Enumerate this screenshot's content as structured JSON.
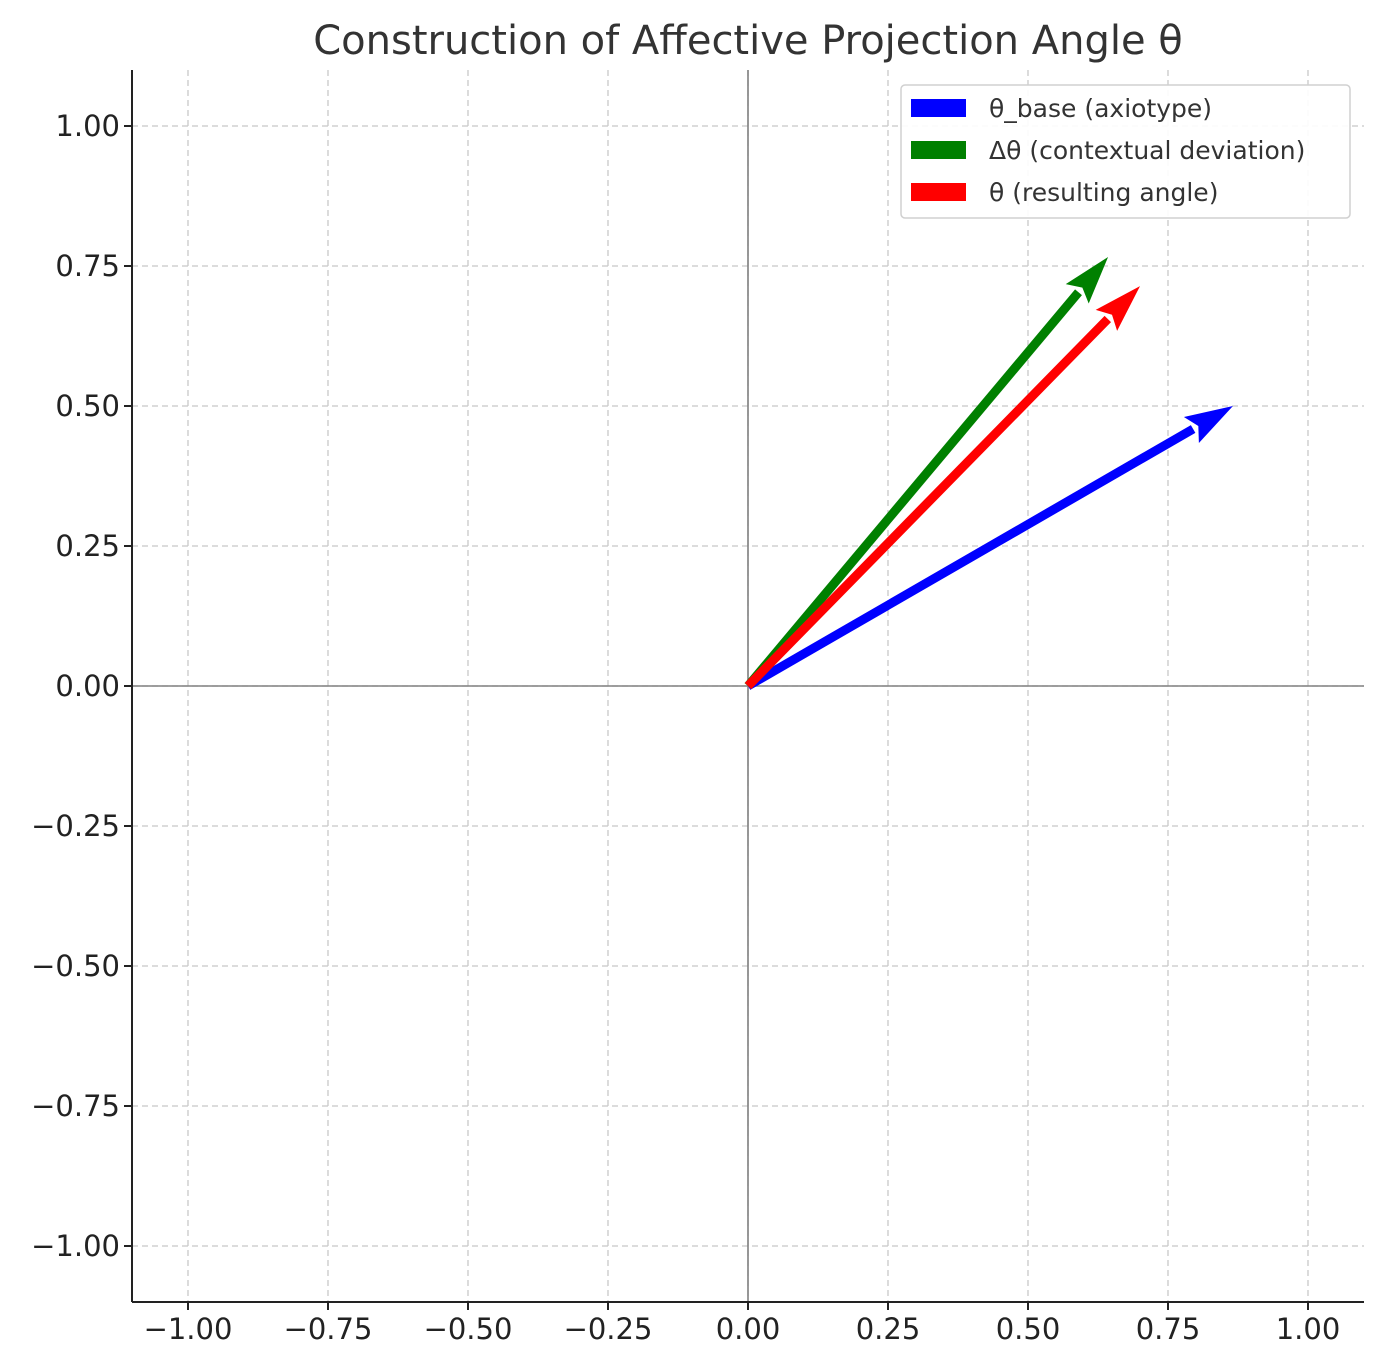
{
  "chart_data": {
    "type": "quiver",
    "title": "Construction of Affective Projection Angle θ",
    "xlabel": "",
    "ylabel": "",
    "xlim": [
      -1.1,
      1.1
    ],
    "ylim": [
      -1.1,
      1.1
    ],
    "x_ticks": [
      -1.0,
      -0.75,
      -0.5,
      -0.25,
      0.0,
      0.25,
      0.5,
      0.75,
      1.0
    ],
    "y_ticks": [
      -1.0,
      -0.75,
      -0.5,
      -0.25,
      0.0,
      0.25,
      0.5,
      0.75,
      1.0
    ],
    "x_tick_labels": [
      "−1.00",
      "−0.75",
      "−0.50",
      "−0.25",
      "0.00",
      "0.25",
      "0.50",
      "0.75",
      "1.00"
    ],
    "y_tick_labels": [
      "−1.00",
      "−0.75",
      "−0.50",
      "−0.25",
      "0.00",
      "0.25",
      "0.50",
      "0.75",
      "1.00"
    ],
    "grid": true,
    "legend_position": "top-right",
    "series": [
      {
        "name": "θ_base (axiotype)",
        "color": "#0000ff",
        "origin": [
          0,
          0
        ],
        "vector": [
          0.866,
          0.5
        ]
      },
      {
        "name": "Δθ (contextual deviation)",
        "color": "#008000",
        "origin": [
          0,
          0
        ],
        "vector": [
          0.643,
          0.766
        ]
      },
      {
        "name": "θ (resulting angle)",
        "color": "#ff0000",
        "origin": [
          0,
          0
        ],
        "vector": [
          0.7,
          0.714
        ]
      }
    ]
  }
}
